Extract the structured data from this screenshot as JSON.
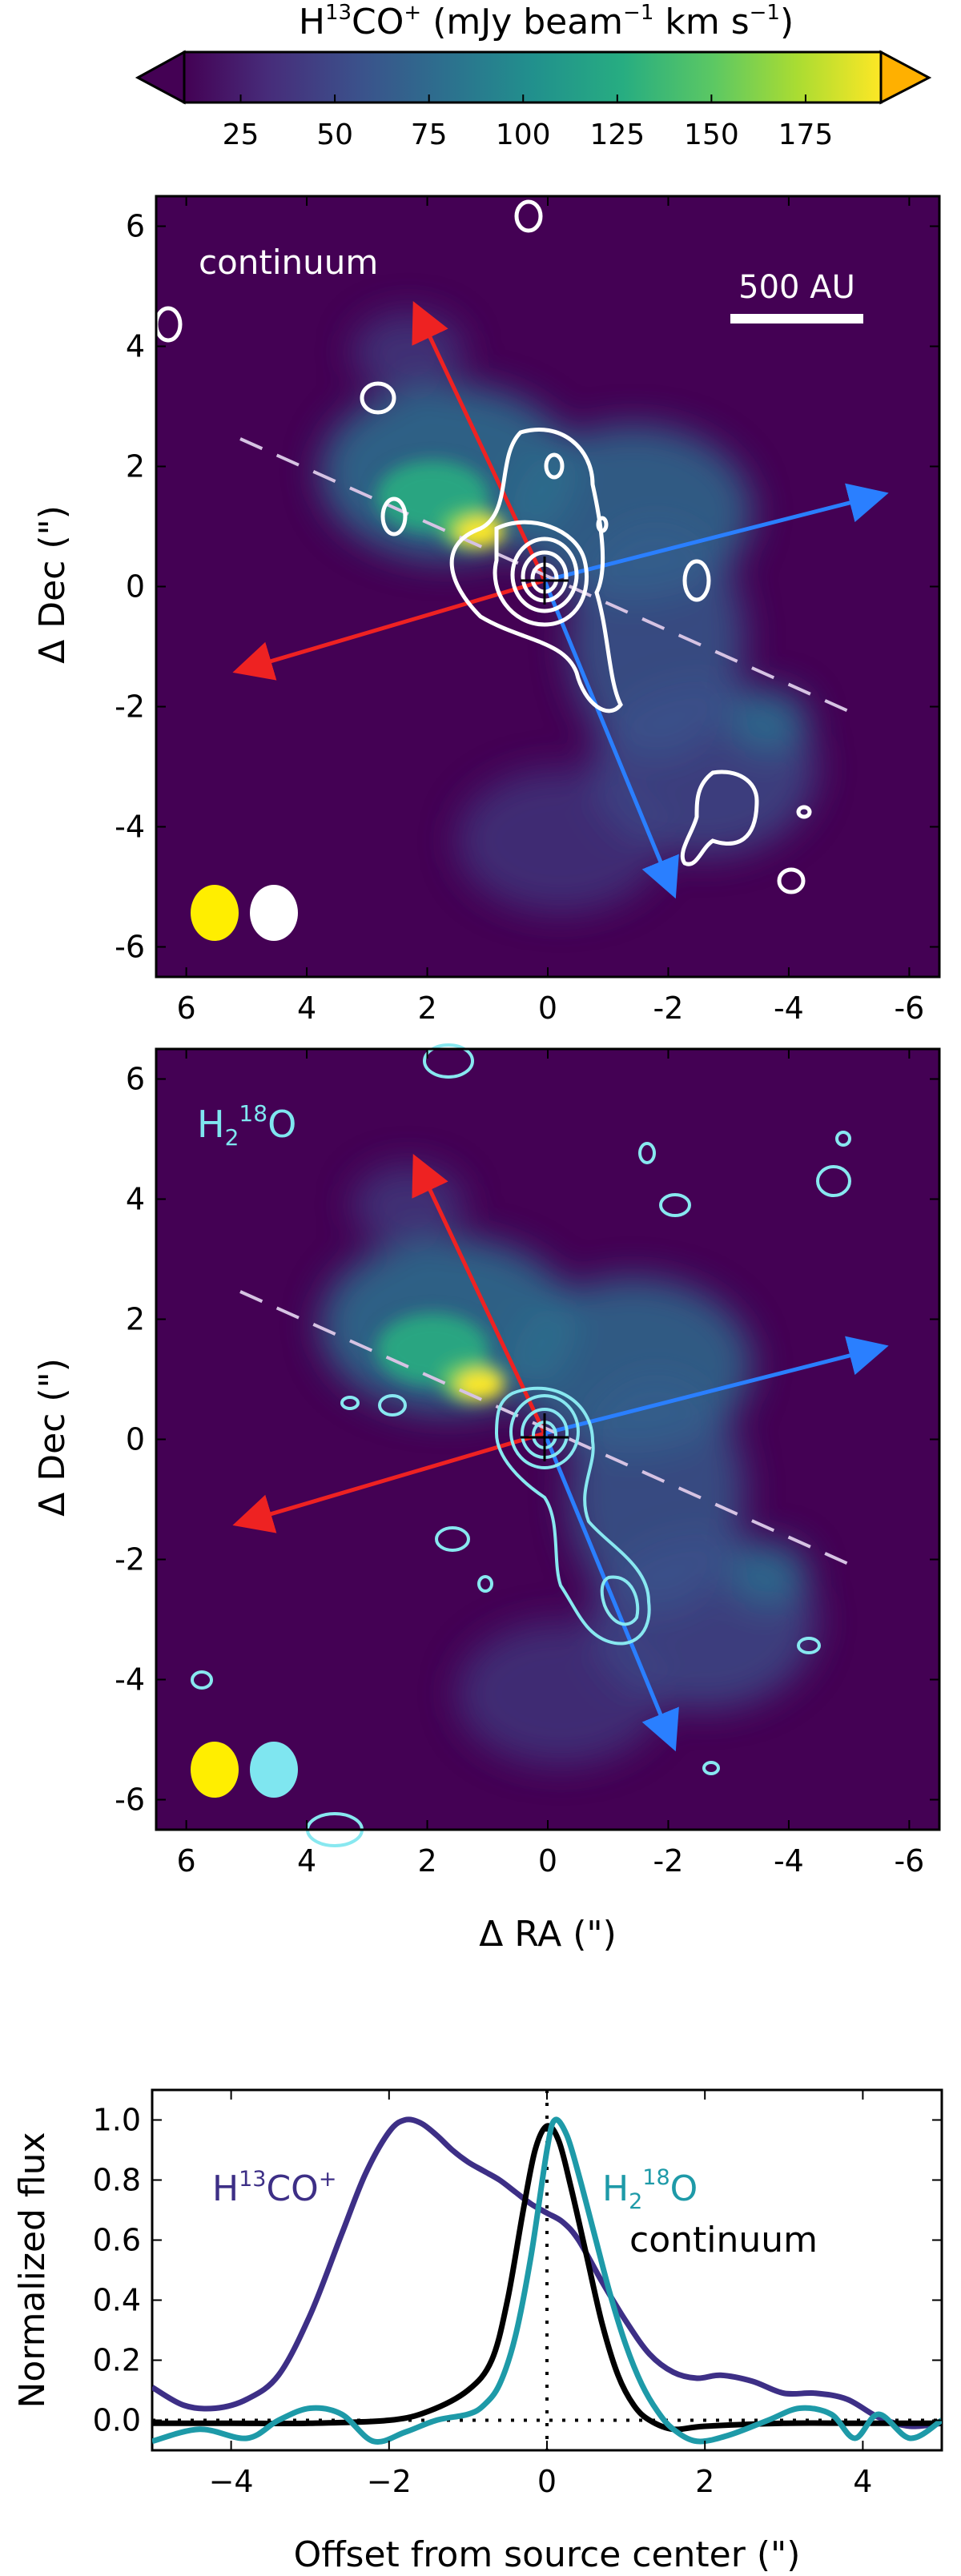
{
  "colorbar": {
    "label_main": "H",
    "label_sup": "13",
    "label_mid": "CO",
    "label_sup2": "+",
    "label_unit": " (mJy beam",
    "label_sup3": "−1",
    "label_unit2": " km s",
    "label_sup4": "−1",
    "label_end": ")",
    "ticks": [
      "25",
      "50",
      "75",
      "100",
      "125",
      "150",
      "175"
    ],
    "tick_values": [
      25,
      50,
      75,
      100,
      125,
      150,
      175
    ],
    "range": [
      10,
      195
    ],
    "colors": [
      "#440154",
      "#472c7a",
      "#3b518b",
      "#2c718e",
      "#21908d",
      "#27ad81",
      "#5cc863",
      "#aadc32",
      "#fde725",
      "#ffa500"
    ]
  },
  "panels": {
    "top": {
      "label": "continuum",
      "label_color": "#ffffff",
      "scalebar": "500 AU",
      "contour_color": "#ffffff",
      "beam_colors": [
        "#ffee00",
        "#ffffff"
      ]
    },
    "bottom": {
      "label_main": "H",
      "label_sub": "2",
      "label_sup": "18",
      "label_end": "O",
      "label_color": "#7fe6f0",
      "contour_color": "#88e8f0",
      "beam_colors": [
        "#ffee00",
        "#7fe6f0"
      ]
    },
    "axes": {
      "ylabel": "Δ Dec (\")",
      "xlabel": "Δ RA (\")",
      "xticks": [
        "6",
        "4",
        "2",
        "0",
        "-2",
        "-4",
        "-6"
      ],
      "yticks": [
        "6",
        "4",
        "2",
        "0",
        "-2",
        "-4",
        "-6"
      ],
      "range": [
        6.5,
        -6.5
      ]
    },
    "outflow_colors": {
      "red": "#ee2222",
      "blue": "#2a7fff",
      "dash": "#d6c3e3"
    }
  },
  "chart_data": {
    "type": "line",
    "xlabel": "Offset from source center (\")",
    "ylabel": "Normalized flux",
    "xlim": [
      -5,
      5
    ],
    "ylim": [
      -0.1,
      1.1
    ],
    "xticks": [
      "−4",
      "−2",
      "0",
      "2",
      "4"
    ],
    "yticks": [
      "0.0",
      "0.2",
      "0.4",
      "0.6",
      "0.8",
      "1.0"
    ],
    "annotations": {
      "h13co_main": "H",
      "h13co_sup": "13",
      "h13co_mid": "CO",
      "h13co_sup2": "+",
      "h2o_main": "H",
      "h2o_sub": "2",
      "h2o_sup": "18",
      "h2o_end": "O",
      "continuum": "continuum"
    },
    "series": [
      {
        "color": "#3d2f86",
        "x": [
          -5,
          -4.6,
          -4.2,
          -3.8,
          -3.4,
          -3,
          -2.6,
          -2.3,
          -2.0,
          -1.8,
          -1.6,
          -1.4,
          -1.2,
          -1.0,
          -0.8,
          -0.6,
          -0.4,
          -0.2,
          0,
          0.2,
          0.4,
          0.7,
          1.0,
          1.3,
          1.6,
          1.9,
          2.2,
          2.6,
          3.0,
          3.4,
          3.8,
          4.2,
          4.6,
          5
        ],
        "y": [
          0.11,
          0.05,
          0.04,
          0.07,
          0.15,
          0.35,
          0.62,
          0.82,
          0.96,
          1.0,
          0.99,
          0.95,
          0.9,
          0.86,
          0.83,
          0.8,
          0.76,
          0.72,
          0.69,
          0.66,
          0.6,
          0.46,
          0.33,
          0.22,
          0.16,
          0.14,
          0.15,
          0.13,
          0.09,
          0.09,
          0.07,
          0.01,
          -0.02,
          -0.01
        ]
      },
      {
        "color": "#000000",
        "x": [
          -5,
          -4,
          -3,
          -2,
          -1.5,
          -1.0,
          -0.7,
          -0.5,
          -0.3,
          -0.15,
          0,
          0.15,
          0.3,
          0.5,
          0.7,
          0.9,
          1.1,
          1.3,
          1.6,
          2,
          3,
          4,
          5
        ],
        "y": [
          -0.01,
          -0.01,
          -0.01,
          0.0,
          0.03,
          0.1,
          0.2,
          0.4,
          0.7,
          0.9,
          0.98,
          0.93,
          0.78,
          0.55,
          0.32,
          0.15,
          0.05,
          0.0,
          -0.03,
          -0.02,
          -0.01,
          -0.01,
          -0.01
        ]
      },
      {
        "color": "#1e9aa8",
        "x": [
          -5,
          -4.4,
          -3.8,
          -3.4,
          -3.0,
          -2.6,
          -2.2,
          -1.8,
          -1.4,
          -1.0,
          -0.8,
          -0.6,
          -0.4,
          -0.2,
          0,
          0.1,
          0.25,
          0.4,
          0.6,
          0.8,
          1.0,
          1.2,
          1.4,
          1.6,
          1.9,
          2.3,
          2.8,
          3.2,
          3.6,
          3.9,
          4.2,
          4.6,
          5
        ],
        "y": [
          -0.07,
          -0.03,
          -0.06,
          0.0,
          0.04,
          0.02,
          -0.07,
          -0.04,
          0.0,
          0.02,
          0.05,
          0.12,
          0.28,
          0.55,
          0.9,
          1.0,
          0.95,
          0.82,
          0.62,
          0.42,
          0.25,
          0.12,
          0.03,
          -0.03,
          -0.07,
          -0.05,
          0.0,
          0.04,
          0.02,
          -0.06,
          0.02,
          -0.06,
          0.0
        ]
      }
    ]
  }
}
